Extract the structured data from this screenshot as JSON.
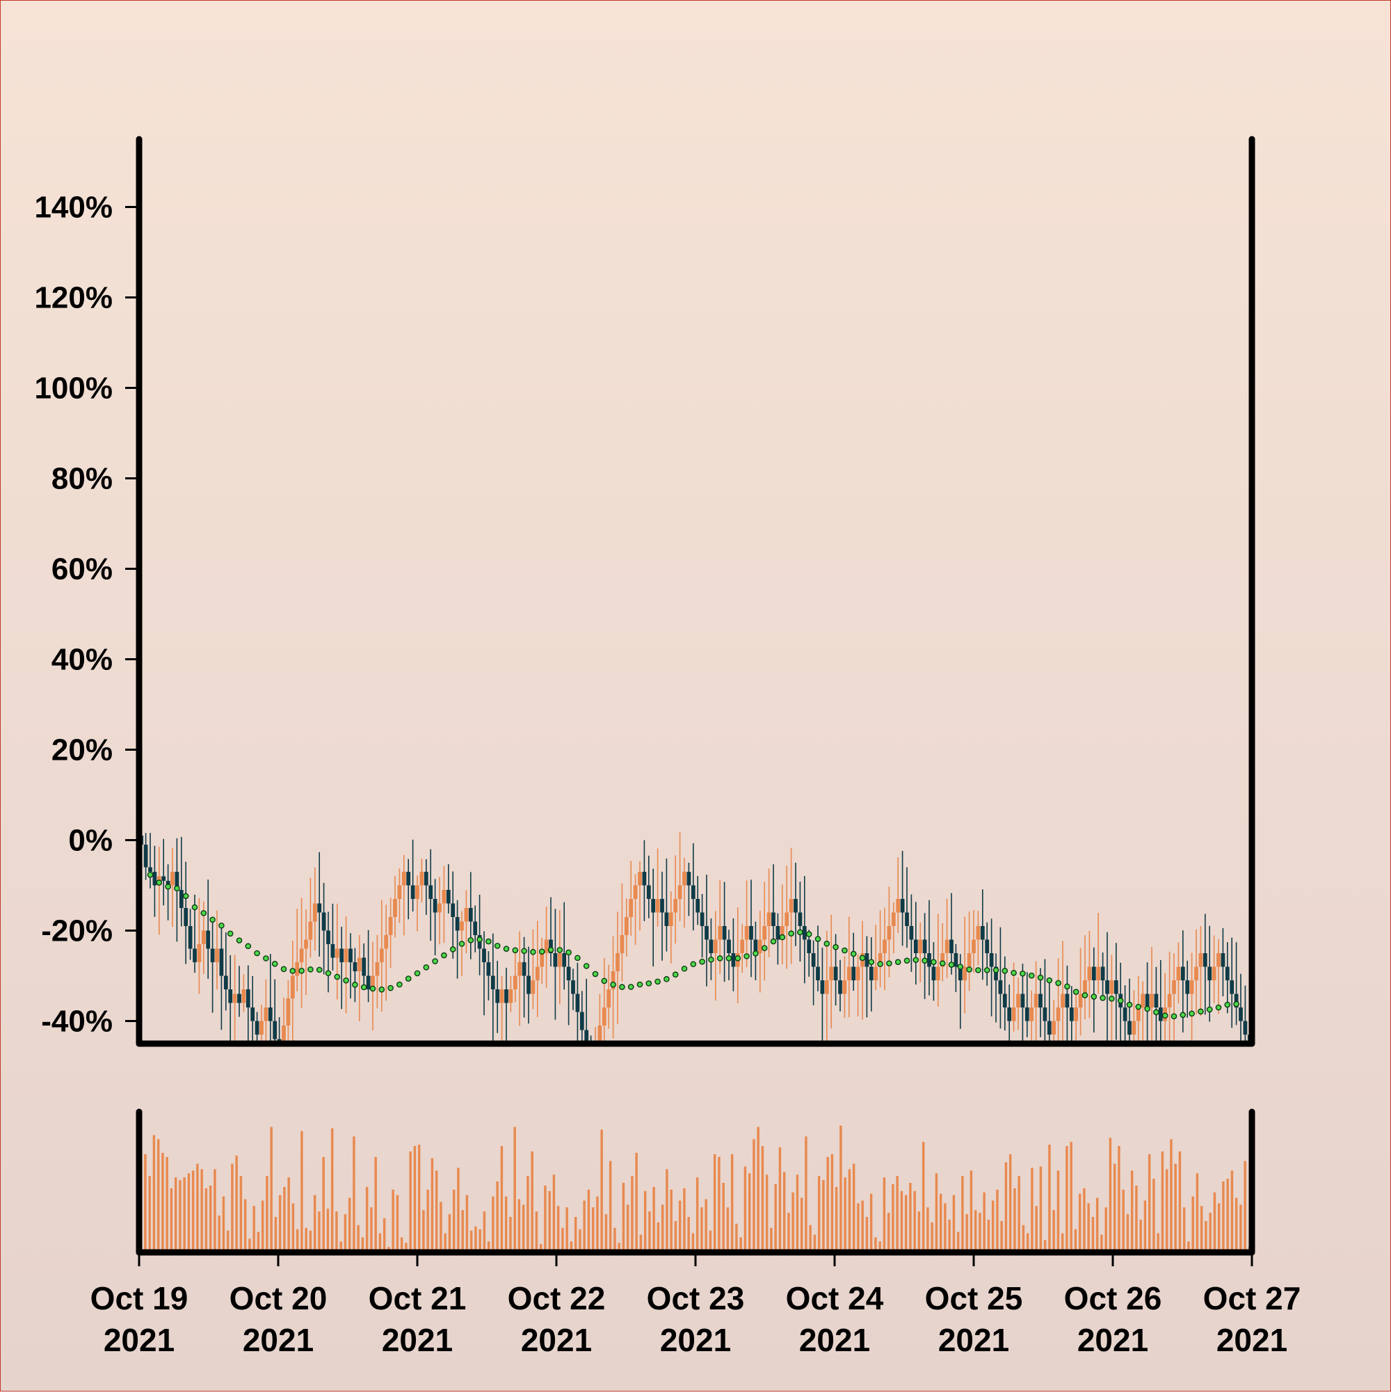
{
  "chart_data": {
    "type": "candlestick",
    "title": "",
    "xlabel": "",
    "ylabel": "",
    "x_range": [
      "2021-10-19",
      "2021-10-27"
    ],
    "ylim": [
      -45,
      155
    ],
    "yticks": [
      -40,
      -20,
      0,
      20,
      40,
      60,
      80,
      100,
      120,
      140
    ],
    "ytick_labels": [
      "-40%",
      "-20%",
      "0%",
      "20%",
      "40%",
      "60%",
      "80%",
      "100%",
      "120%",
      "140%"
    ],
    "xticks": [
      "2021-10-19",
      "2021-10-20",
      "2021-10-21",
      "2021-10-22",
      "2021-10-23",
      "2021-10-24",
      "2021-10-25",
      "2021-10-26",
      "2021-10-27"
    ],
    "xtick_labels": [
      {
        "line1": "Oct 19",
        "line2": "2021"
      },
      {
        "line1": "Oct 20",
        "line2": "2021"
      },
      {
        "line1": "Oct 21",
        "line2": "2021"
      },
      {
        "line1": "Oct 22",
        "line2": "2021"
      },
      {
        "line1": "Oct 23",
        "line2": "2021"
      },
      {
        "line1": "Oct 24",
        "line2": "2021"
      },
      {
        "line1": "Oct 25",
        "line2": "2021"
      },
      {
        "line1": "Oct 26",
        "line2": "2021"
      },
      {
        "line1": "Oct 27",
        "line2": "2021"
      }
    ],
    "close_series_pct": [
      -1,
      -6,
      -7,
      -10,
      -8,
      -9,
      -10,
      -7,
      -11,
      -15,
      -19,
      -24,
      -27,
      -23,
      -20,
      -24,
      -27,
      -24,
      -30,
      -33,
      -36,
      -34,
      -36,
      -33,
      -37,
      -40,
      -43,
      -40,
      -37,
      -40,
      -44,
      -46,
      -41,
      -35,
      -30,
      -27,
      -24,
      -22,
      -18,
      -14,
      -16,
      -20,
      -23,
      -26,
      -24,
      -27,
      -24,
      -27,
      -29,
      -26,
      -30,
      -33,
      -30,
      -27,
      -24,
      -21,
      -17,
      -13,
      -10,
      -7,
      -10,
      -13,
      -10,
      -7,
      -10,
      -13,
      -16,
      -14,
      -11,
      -14,
      -17,
      -20,
      -18,
      -15,
      -18,
      -21,
      -24,
      -27,
      -30,
      -33,
      -36,
      -33,
      -36,
      -33,
      -30,
      -27,
      -30,
      -34,
      -31,
      -28,
      -25,
      -22,
      -25,
      -28,
      -25,
      -28,
      -31,
      -34,
      -38,
      -42,
      -46,
      -49,
      -45,
      -41,
      -37,
      -33,
      -29,
      -25,
      -21,
      -17,
      -13,
      -10,
      -7,
      -10,
      -13,
      -16,
      -13,
      -16,
      -19,
      -16,
      -13,
      -10,
      -7,
      -10,
      -13,
      -16,
      -19,
      -22,
      -25,
      -22,
      -19,
      -22,
      -25,
      -28,
      -25,
      -22,
      -19,
      -22,
      -25,
      -22,
      -19,
      -16,
      -19,
      -22,
      -19,
      -16,
      -13,
      -16,
      -19,
      -22,
      -25,
      -28,
      -31,
      -34,
      -31,
      -28,
      -31,
      -34,
      -31,
      -28,
      -31,
      -28,
      -25,
      -28,
      -31,
      -28,
      -25,
      -22,
      -19,
      -16,
      -13,
      -16,
      -19,
      -22,
      -25,
      -22,
      -25,
      -28,
      -31,
      -28,
      -25,
      -22,
      -25,
      -28,
      -31,
      -28,
      -25,
      -22,
      -19,
      -22,
      -25,
      -28,
      -31,
      -34,
      -37,
      -40,
      -37,
      -34,
      -37,
      -40,
      -37,
      -34,
      -37,
      -40,
      -43,
      -40,
      -37,
      -34,
      -37,
      -40,
      -37,
      -34,
      -31,
      -28,
      -31,
      -28,
      -31,
      -34,
      -31,
      -34,
      -37,
      -40,
      -43,
      -40,
      -37,
      -34,
      -37,
      -34,
      -37,
      -40,
      -37,
      -34,
      -31,
      -28,
      -31,
      -34,
      -31,
      -28,
      -25,
      -28,
      -31,
      -28,
      -25,
      -28,
      -31,
      -34,
      -37,
      -40,
      -43,
      -46
    ]
  },
  "volume_panel": {
    "type": "bar",
    "values_note": "",
    "values": [
      88,
      72,
      56,
      86,
      83,
      73,
      70,
      47,
      55,
      53,
      55,
      58,
      60,
      65,
      61,
      47,
      49,
      61,
      27,
      41,
      16,
      65,
      71,
      56,
      39,
      10,
      34,
      15,
      38,
      56,
      92,
      26,
      42,
      48,
      55,
      36,
      17,
      89,
      18,
      16,
      42,
      30,
      70,
      32,
      91,
      30,
      8,
      28,
      40,
      85,
      20,
      11,
      48,
      33,
      70,
      14,
      25,
      4,
      46,
      42,
      11,
      7,
      74,
      78,
      79,
      31,
      46,
      69,
      60,
      37,
      14,
      28,
      46,
      62,
      31,
      42,
      16,
      19,
      17,
      30,
      8,
      41,
      52,
      78,
      41,
      26,
      92,
      39,
      35,
      56,
      74,
      30,
      6,
      49,
      45,
      57,
      34,
      18,
      33,
      8,
      26,
      17,
      38,
      46,
      33,
      41,
      90,
      28,
      67,
      18,
      7,
      51,
      35,
      56,
      73,
      13,
      45,
      30,
      48,
      22,
      35,
      61,
      46,
      23,
      38,
      47,
      26,
      14,
      55,
      33,
      39,
      16,
      72,
      70,
      51,
      33,
      72,
      21,
      11,
      63,
      58,
      83,
      92,
      78,
      57,
      18,
      50,
      77,
      59,
      29,
      44,
      57,
      40,
      85,
      20,
      13,
      56,
      53,
      70,
      72,
      48,
      93,
      55,
      61,
      65,
      36,
      38,
      26,
      43,
      11,
      8,
      55,
      29,
      50,
      56,
      45,
      42,
      51,
      45,
      30,
      81,
      33,
      22,
      58,
      43,
      36,
      24,
      42,
      15,
      56,
      28,
      60,
      31,
      29,
      44,
      24,
      38,
      46,
      23,
      66,
      72,
      47,
      56,
      20,
      14,
      62,
      34,
      63,
      9,
      79,
      31,
      60,
      14,
      78,
      81,
      17,
      43,
      47,
      36,
      26,
      40,
      13,
      33,
      84,
      65,
      78,
      46,
      28,
      60,
      49,
      24,
      38,
      72,
      54,
      14,
      74,
      61,
      83,
      65,
      74,
      33,
      8,
      41,
      58,
      34,
      23,
      29,
      44,
      36,
      52,
      54,
      60,
      40,
      35,
      67,
      4
    ]
  }
}
